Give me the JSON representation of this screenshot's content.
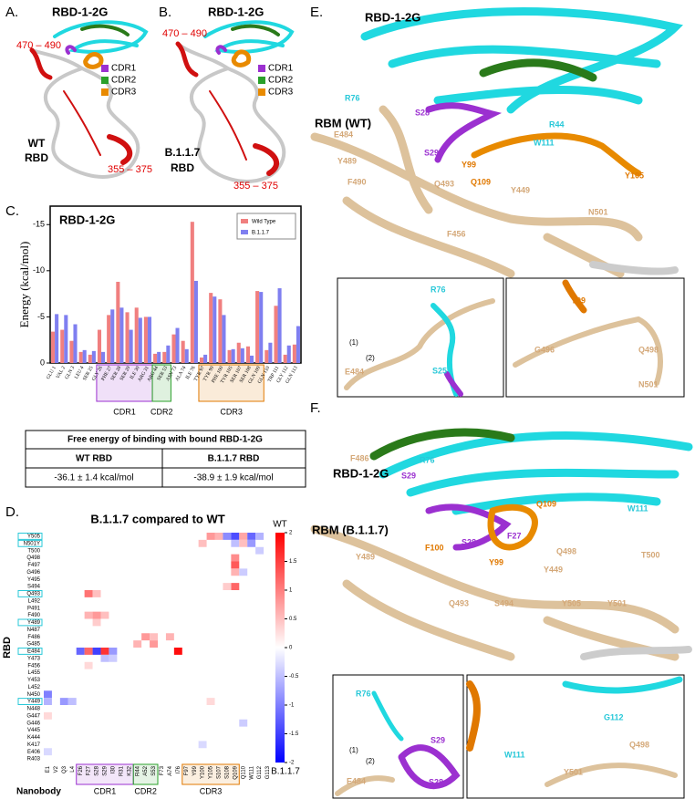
{
  "panels": {
    "A": {
      "label": "A.",
      "nanobody": "RBD-1-2G",
      "region1": "470 – 490",
      "region2": "355 – 375",
      "legend": [
        "CDR1",
        "CDR2",
        "CDR3"
      ],
      "variant": "WT",
      "target": "RBD"
    },
    "B": {
      "label": "B.",
      "nanobody": "RBD-1-2G",
      "region1": "470 – 490",
      "region2": "355 – 375",
      "legend": [
        "CDR1",
        "CDR2",
        "CDR3"
      ],
      "variant": "B.1.1.7",
      "target": "RBD"
    },
    "C": {
      "label": "C."
    },
    "D": {
      "label": "D."
    },
    "E": {
      "label": "E.",
      "nanobody": "RBD-1-2G",
      "rbm": "RBM (WT)",
      "residues": [
        "R76",
        "S28",
        "E484",
        "R44",
        "W111",
        "S29",
        "Y489",
        "Y99",
        "Q109",
        "Y105",
        "F490",
        "Q493",
        "Y449",
        "N501",
        "F456"
      ],
      "inset1": [
        "R76",
        "(1)",
        "(2)",
        "E484",
        "S25"
      ],
      "inset2": [
        "Y99",
        "Q498",
        "G496",
        "N501"
      ]
    },
    "F": {
      "label": "F.",
      "nanobody": "RBD-1-2G",
      "rbm": "RBM (B.1.1.7)",
      "residues": [
        "F486",
        "R76",
        "S29",
        "Q109",
        "W111",
        "F100",
        "S28",
        "F27",
        "Y489",
        "Q498",
        "T500",
        "Y99",
        "Y449",
        "Q493",
        "S494",
        "Y505",
        "Y501"
      ],
      "inset1": [
        "R76",
        "(1)",
        "(2)",
        "S29",
        "E484",
        "S28"
      ],
      "inset2": [
        "W111",
        "G112",
        "Q498",
        "Y501"
      ]
    }
  },
  "table": {
    "title": "Free energy of binding with bound RBD-1-2G",
    "headers": [
      "WT RBD",
      "B.1.1.7 RBD"
    ],
    "rows": [
      [
        "-36.1 ± 1.4 kcal/mol",
        "-38.9 ± 1.9 kcal/mol"
      ]
    ]
  },
  "chart_data": [
    {
      "type": "bar",
      "title": "RBD-1-2G",
      "y_label": "Energy (kcal/mol)",
      "categories": [
        "GLU 1",
        "VAL 2",
        "GLN 3",
        "LEU 4",
        "SER 25",
        "GLY 26",
        "PHE 27",
        "SER 28",
        "SER 29",
        "ILE 30",
        "ARG 31",
        "ARG 44",
        "SER 53",
        "ASN 73",
        "ALA 74",
        "ILE 76",
        "TYR 97",
        "TYR 99",
        "PHE 100",
        "TYR 105",
        "SER 107",
        "SER 108",
        "GLN 109",
        "GLN 110",
        "TRP 111",
        "GLY 112",
        "GLN 113"
      ],
      "series": [
        {
          "name": "Wild Type",
          "color": "#f07f7f",
          "values": [
            -3.4,
            -3.6,
            -2.4,
            -1.2,
            -0.9,
            -3.6,
            -5.2,
            -8.8,
            -5.5,
            -6.0,
            -5.0,
            -1.0,
            -1.2,
            -3.1,
            -2.4,
            -15.3,
            -0.6,
            -7.6,
            -6.9,
            -1.4,
            -2.2,
            -1.8,
            -7.8,
            -1.4,
            -6.2,
            -0.9,
            -2.0
          ]
        },
        {
          "name": "B.1.1.7",
          "color": "#7f7ff0",
          "values": [
            -5.3,
            -5.2,
            -4.2,
            -1.4,
            -1.3,
            -1.2,
            -5.8,
            -6.0,
            -3.6,
            -4.9,
            -5.0,
            -1.2,
            -1.9,
            -3.8,
            -1.5,
            -8.9,
            -0.9,
            -7.2,
            -5.2,
            -1.5,
            -1.6,
            -0.8,
            -7.7,
            -2.2,
            -8.1,
            -1.9,
            -4.0
          ]
        }
      ],
      "groups": [
        {
          "name": "CDR1",
          "from": "GLY 26",
          "to": "ARG 31",
          "color": "#9b30d0"
        },
        {
          "name": "CDR2",
          "from": "ARG 44",
          "to": "SER 53",
          "color": "#2aa02a"
        },
        {
          "name": "CDR3",
          "from": "TYR 97",
          "to": "GLN 109",
          "color": "#e07800"
        }
      ],
      "ylim": [
        0,
        -17
      ],
      "yticks": [
        0,
        -5,
        -10,
        -15
      ],
      "legend": "top-right"
    },
    {
      "type": "heatmap",
      "title": "B.1.1.7 compared to WT",
      "y_label": "RBD",
      "x_label": "Nanobody",
      "rows": [
        "Y505",
        "N501Y",
        "T500",
        "Q498",
        "F497",
        "G496",
        "Y495",
        "S494",
        "Q493",
        "L492",
        "P491",
        "F490",
        "Y489",
        "N487",
        "F486",
        "G485",
        "E484",
        "Y473",
        "F456",
        "L455",
        "Y453",
        "L452",
        "N450",
        "Y449",
        "N448",
        "G447",
        "G446",
        "V445",
        "K444",
        "K417",
        "E406",
        "R403"
      ],
      "highlight_rows": [
        "Y505",
        "N501Y",
        "Q493",
        "Y489",
        "E484",
        "Y449"
      ],
      "columns": [
        "E1",
        "V2",
        "Q3",
        "L4",
        "F26",
        "F27",
        "S28",
        "S29",
        "I30",
        "R31",
        "K32",
        "R44",
        "A52",
        "S53",
        "F73",
        "A74",
        "I76",
        "F97",
        "Y99",
        "Y100",
        "Y105",
        "S107",
        "S108",
        "Q109",
        "Q110",
        "W111",
        "G112",
        "G113"
      ],
      "groups": [
        {
          "name": "CDR1",
          "from": "F26",
          "to": "K32",
          "color": "#9b30d0"
        },
        {
          "name": "CDR2",
          "from": "R44",
          "to": "S53",
          "color": "#2aa02a"
        },
        {
          "name": "CDR3",
          "from": "F97",
          "to": "Q109",
          "color": "#e07800"
        }
      ],
      "cells": [
        {
          "row": "Y505",
          "col": "Y105",
          "value": 0.8
        },
        {
          "row": "Y505",
          "col": "S107",
          "value": 0.6
        },
        {
          "row": "Y505",
          "col": "S108",
          "value": -0.9
        },
        {
          "row": "Y505",
          "col": "Q109",
          "value": -1.4
        },
        {
          "row": "Y505",
          "col": "Q110",
          "value": 0.7
        },
        {
          "row": "Y505",
          "col": "W111",
          "value": -1.2
        },
        {
          "row": "Y505",
          "col": "G112",
          "value": -0.6
        },
        {
          "row": "N501Y",
          "col": "Y100",
          "value": 0.5
        },
        {
          "row": "N501Y",
          "col": "Q109",
          "value": -0.5
        },
        {
          "row": "N501Y",
          "col": "Q110",
          "value": 0.5
        },
        {
          "row": "N501Y",
          "col": "W111",
          "value": -0.8
        },
        {
          "row": "T500",
          "col": "G112",
          "value": -0.4
        },
        {
          "row": "Q498",
          "col": "Q109",
          "value": 0.9
        },
        {
          "row": "F497",
          "col": "Q109",
          "value": 1.3
        },
        {
          "row": "G496",
          "col": "Q109",
          "value": 0.6
        },
        {
          "row": "G496",
          "col": "Q110",
          "value": -0.4
        },
        {
          "row": "S494",
          "col": "Q109",
          "value": 1.2
        },
        {
          "row": "S494",
          "col": "S108",
          "value": 0.4
        },
        {
          "row": "Q493",
          "col": "F27",
          "value": 1.1
        },
        {
          "row": "Q493",
          "col": "S28",
          "value": 0.5
        },
        {
          "row": "F490",
          "col": "F27",
          "value": 0.6
        },
        {
          "row": "F490",
          "col": "S28",
          "value": 0.8
        },
        {
          "row": "F490",
          "col": "S29",
          "value": 0.5
        },
        {
          "row": "Y489",
          "col": "S28",
          "value": 0.4
        },
        {
          "row": "F486",
          "col": "A52",
          "value": 0.8
        },
        {
          "row": "F486",
          "col": "S53",
          "value": 0.5
        },
        {
          "row": "F486",
          "col": "A74",
          "value": 0.6
        },
        {
          "row": "G485",
          "col": "R44",
          "value": 0.6
        },
        {
          "row": "G485",
          "col": "S53",
          "value": 0.8
        },
        {
          "row": "E484",
          "col": "F26",
          "value": -1.2
        },
        {
          "row": "E484",
          "col": "F27",
          "value": 1.2
        },
        {
          "row": "E484",
          "col": "S28",
          "value": -1.5
        },
        {
          "row": "E484",
          "col": "S29",
          "value": 1.6
        },
        {
          "row": "E484",
          "col": "I30",
          "value": -0.8
        },
        {
          "row": "E484",
          "col": "I76",
          "value": 1.9
        },
        {
          "row": "Y473",
          "col": "S29",
          "value": -0.5
        },
        {
          "row": "Y473",
          "col": "I30",
          "value": -0.4
        },
        {
          "row": "F456",
          "col": "F27",
          "value": 0.3
        },
        {
          "row": "N450",
          "col": "E1",
          "value": -1.0
        },
        {
          "row": "Y449",
          "col": "E1",
          "value": -0.6
        },
        {
          "row": "Y449",
          "col": "Q3",
          "value": -0.8
        },
        {
          "row": "Y449",
          "col": "L4",
          "value": -0.5
        },
        {
          "row": "Y449",
          "col": "Y105",
          "value": 0.3
        },
        {
          "row": "G447",
          "col": "E1",
          "value": 0.3
        },
        {
          "row": "G446",
          "col": "Q110",
          "value": -0.4
        },
        {
          "row": "K417",
          "col": "Y100",
          "value": -0.3
        },
        {
          "row": "E406",
          "col": "E1",
          "value": -0.3
        }
      ],
      "zlim": [
        -2,
        2
      ],
      "zticks": [
        2,
        1.5,
        1,
        0.5,
        0,
        -0.5,
        -1,
        -1.5,
        -2
      ],
      "scale_top_label": "WT",
      "scale_bottom_label": "B.1.1.7"
    }
  ]
}
